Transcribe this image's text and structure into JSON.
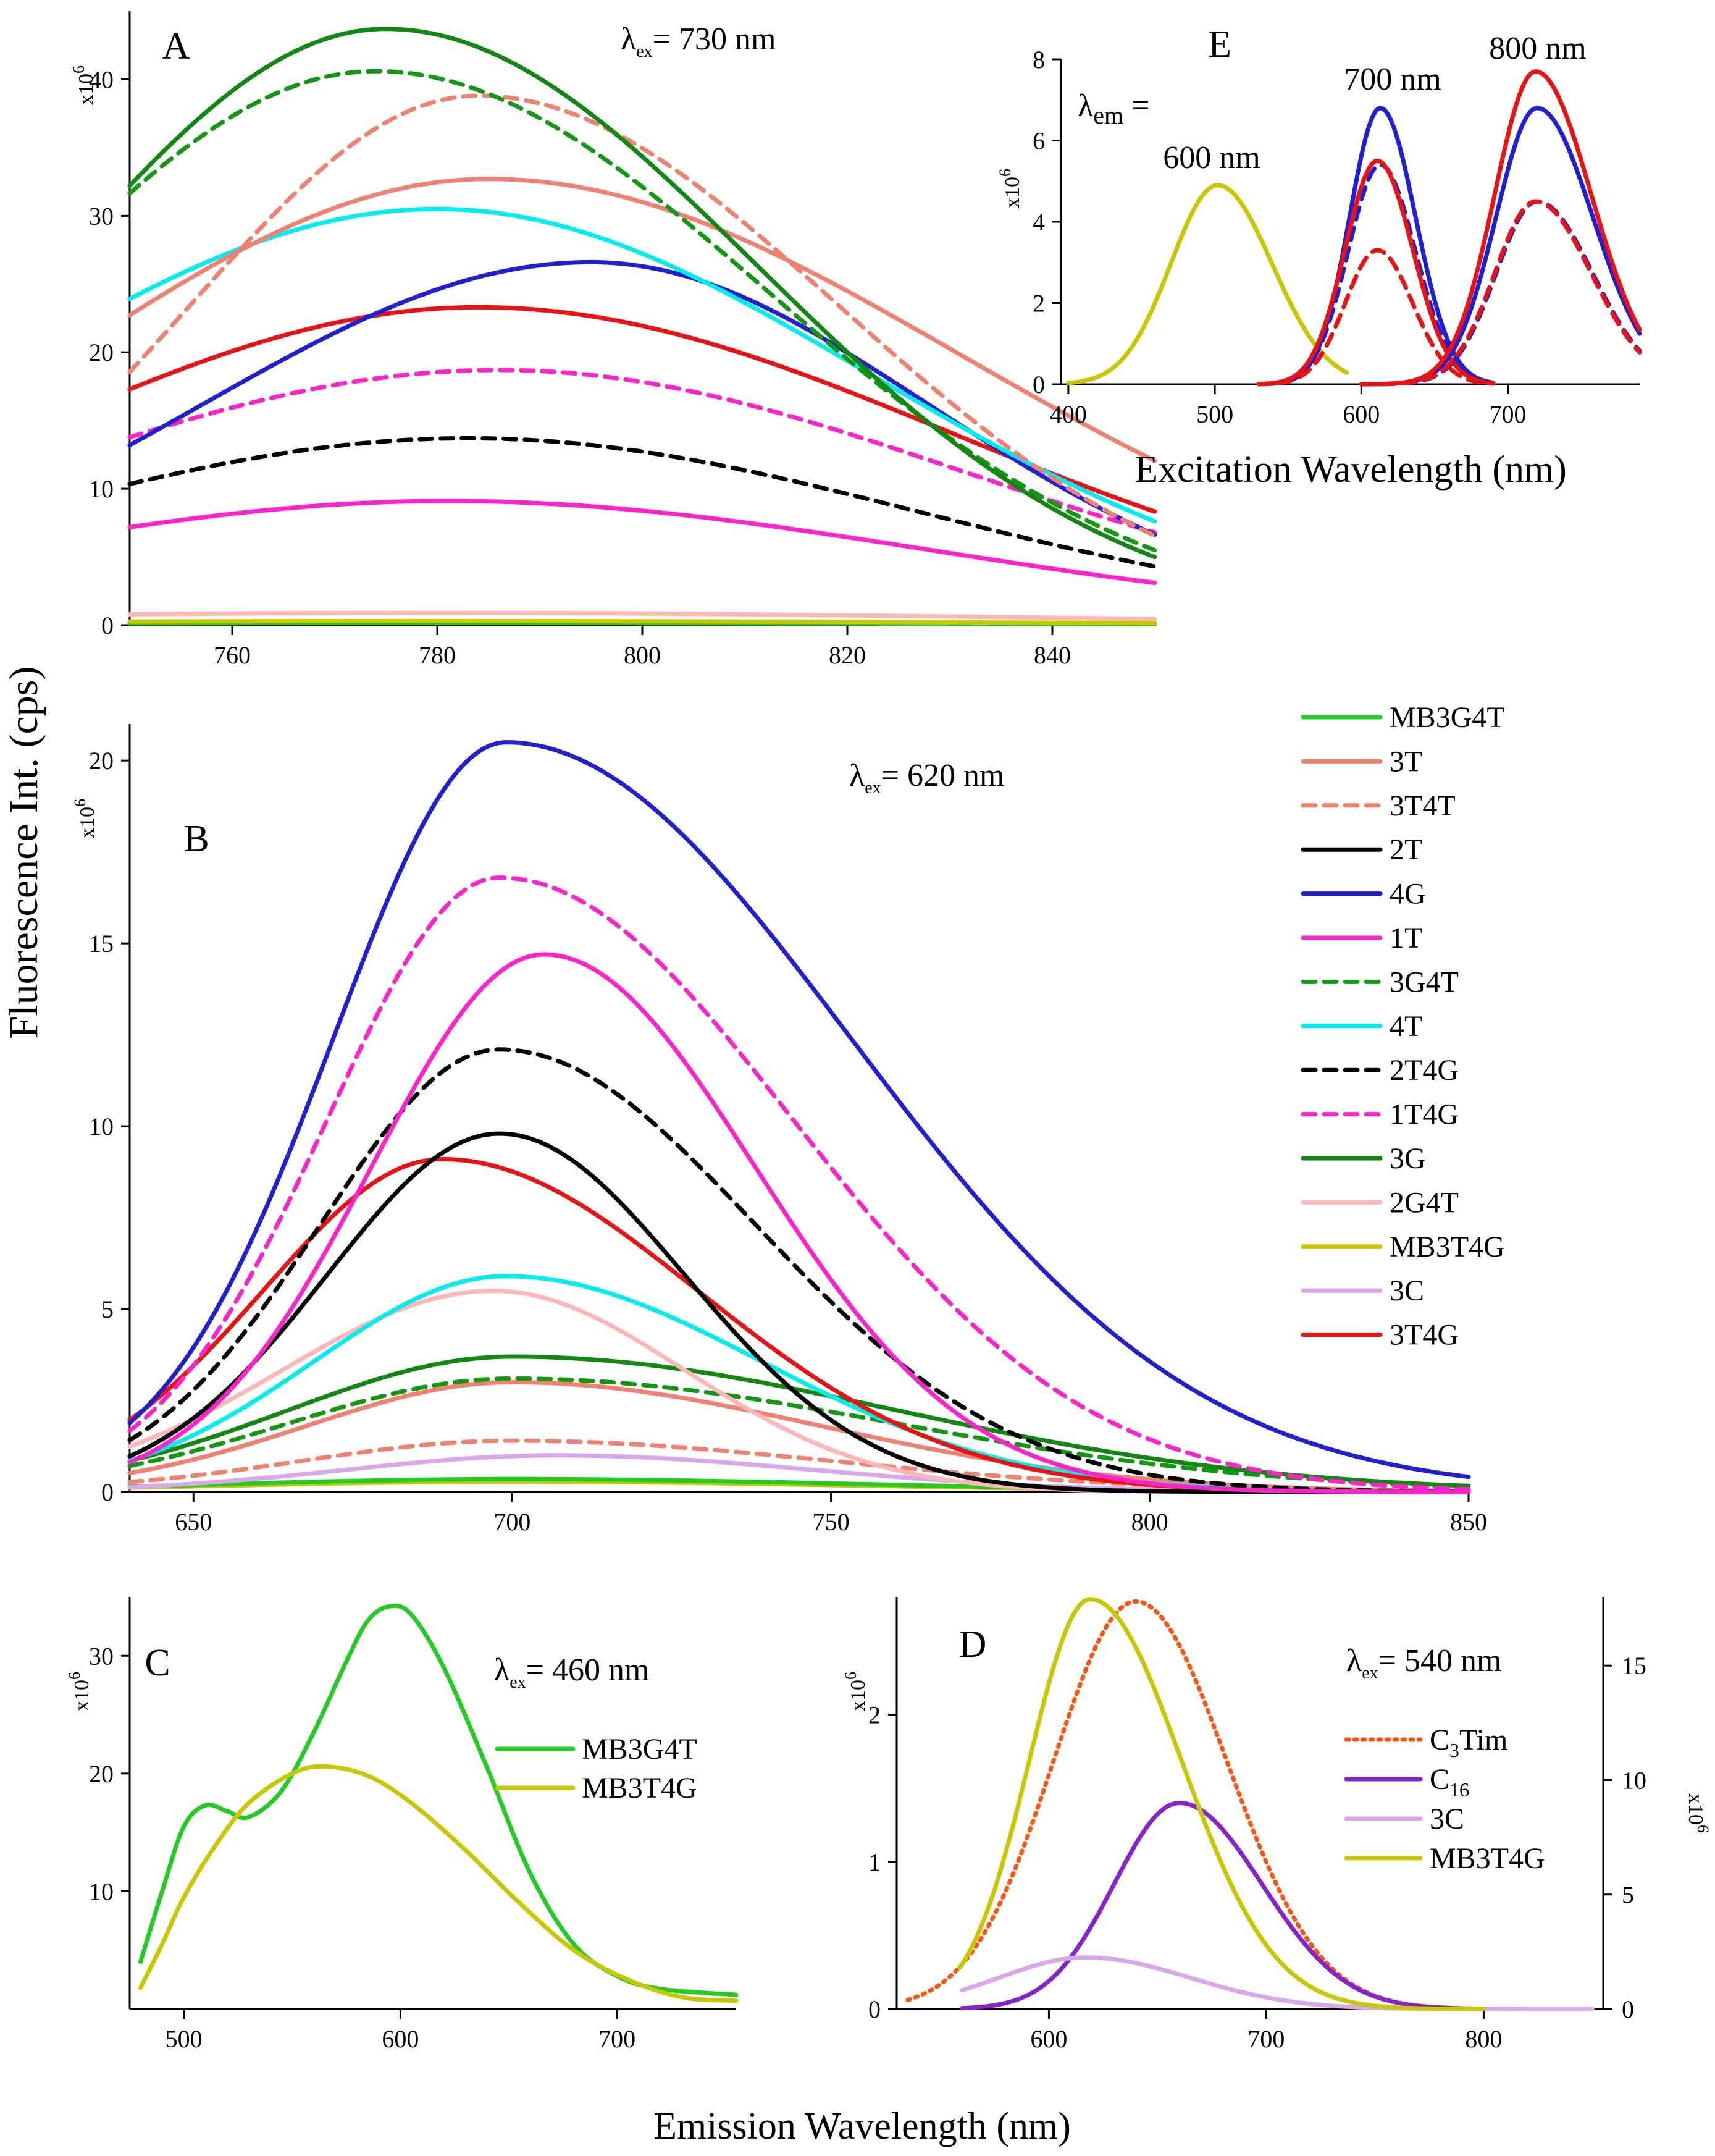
{
  "figure": {
    "shared_ylabel": "Fluorescence Int. (cps)",
    "shared_xlabel": "Emission Wavelength (nm)"
  },
  "colors": {
    "MB3G4T": "#22cc22",
    "3T": "#f08070",
    "3T4T": "#f08070",
    "2T": "#000000",
    "4G": "#1f1fd6",
    "1T": "#ff22cc",
    "3G4T": "#119911",
    "4T": "#00eeee",
    "2T4G": "#000000",
    "1T4G": "#ff22cc",
    "3G": "#118811",
    "2G4T": "#ffb6b6",
    "MB3T4G": "#c8c800",
    "3C": "#d8a8ea",
    "3T4G": "#ee1111",
    "C3Tim": "#ff5511",
    "C16": "#8822cc"
  },
  "chart_data": [
    {
      "panel": "A",
      "type": "line",
      "label": "A",
      "annotation": "λex= 730 nm",
      "multiplier": "x10^6",
      "xlim": [
        750,
        850
      ],
      "ylim": [
        0,
        45
      ],
      "xticks": [
        760,
        780,
        800,
        820,
        840
      ],
      "yticks": [
        0,
        10,
        20,
        30,
        40
      ],
      "series": [
        {
          "name": "3G",
          "peak_x": 775,
          "peak": 43.7,
          "sl": 32,
          "sr": 36,
          "style": "solid"
        },
        {
          "name": "3G4T",
          "peak_x": 774,
          "peak": 40.6,
          "sl": 34,
          "sr": 38,
          "style": "dashed"
        },
        {
          "name": "3T4T",
          "peak_x": 784,
          "peak": 38.8,
          "sl": 28,
          "sr": 35,
          "style": "dashed"
        },
        {
          "name": "3T",
          "peak_x": 785,
          "peak": 32.7,
          "sl": 41,
          "sr": 46,
          "style": "solid"
        },
        {
          "name": "4T",
          "peak_x": 780,
          "peak": 30.5,
          "sl": 43,
          "sr": 42,
          "style": "solid"
        },
        {
          "name": "4G",
          "peak_x": 795,
          "peak": 26.6,
          "sl": 38,
          "sr": 33,
          "style": "solid"
        },
        {
          "name": "3T4G",
          "peak_x": 784,
          "peak": 23.3,
          "sl": 44,
          "sr": 46,
          "style": "solid"
        },
        {
          "name": "1T4G",
          "peak_x": 786,
          "peak": 18.7,
          "sl": 46,
          "sr": 45,
          "style": "dashed"
        },
        {
          "name": "2T4G",
          "peak_x": 783,
          "peak": 13.7,
          "sl": 44,
          "sr": 44,
          "style": "dashed"
        },
        {
          "name": "1T",
          "peak_x": 781,
          "peak": 9.1,
          "sl": 45,
          "sr": 47,
          "style": "solid"
        },
        {
          "name": "2G4T",
          "peak_x": 780,
          "peak": 0.9,
          "sl": 60,
          "sr": 60,
          "style": "solid"
        },
        {
          "name": "MB3T4G",
          "peak_x": 780,
          "peak": 0.3,
          "sl": 60,
          "sr": 60,
          "style": "solid"
        },
        {
          "name": "MB3G4T",
          "peak_x": 780,
          "peak": 0.15,
          "sl": 60,
          "sr": 60,
          "style": "solid"
        }
      ]
    },
    {
      "panel": "B",
      "type": "line",
      "label": "B",
      "annotation": "λex= 620 nm",
      "multiplier": "x10^6",
      "xlim": [
        640,
        850
      ],
      "ylim": [
        0,
        21
      ],
      "xticks": [
        650,
        700,
        750,
        800,
        850
      ],
      "yticks": [
        0,
        5,
        10,
        15,
        20
      ],
      "series": [
        {
          "name": "4G",
          "peak_x": 699,
          "peak": 20.5,
          "sl": 27,
          "sr": 54,
          "style": "solid"
        },
        {
          "name": "1T4G",
          "peak_x": 698,
          "peak": 16.8,
          "sl": 27,
          "sr": 46,
          "style": "dashed"
        },
        {
          "name": "1T",
          "peak_x": 705,
          "peak": 14.7,
          "sl": 27,
          "sr": 33,
          "style": "solid"
        },
        {
          "name": "2T4G",
          "peak_x": 698,
          "peak": 12.1,
          "sl": 28,
          "sr": 40,
          "style": "dashed"
        },
        {
          "name": "2T",
          "peak_x": 698,
          "peak": 9.8,
          "sl": 27,
          "sr": 29,
          "style": "solid"
        },
        {
          "name": "3T4G",
          "peak_x": 689,
          "peak": 9.1,
          "sl": 28,
          "sr": 40,
          "style": "solid"
        },
        {
          "name": "4T",
          "peak_x": 699,
          "peak": 5.9,
          "sl": 30,
          "sr": 40,
          "style": "solid"
        },
        {
          "name": "2G4T",
          "peak_x": 697,
          "peak": 5.5,
          "sl": 33,
          "sr": 30,
          "style": "solid"
        },
        {
          "name": "3G",
          "peak_x": 700,
          "peak": 3.7,
          "sl": 35,
          "sr": 60,
          "style": "solid"
        },
        {
          "name": "3G4T",
          "peak_x": 700,
          "peak": 3.1,
          "sl": 35,
          "sr": 60,
          "style": "dashed"
        },
        {
          "name": "3T",
          "peak_x": 700,
          "peak": 3.0,
          "sl": 32,
          "sr": 48,
          "style": "solid"
        },
        {
          "name": "3T4T",
          "peak_x": 700,
          "peak": 1.4,
          "sl": 33,
          "sr": 50,
          "style": "dashed"
        },
        {
          "name": "3C",
          "peak_x": 707,
          "peak": 1.0,
          "sl": 33,
          "sr": 40,
          "style": "solid"
        },
        {
          "name": "MB3G4T",
          "peak_x": 700,
          "peak": 0.35,
          "sl": 45,
          "sr": 55,
          "style": "solid"
        },
        {
          "name": "MB3T4G",
          "peak_x": 700,
          "peak": 0.28,
          "sl": 45,
          "sr": 55,
          "style": "solid"
        }
      ]
    },
    {
      "panel": "C",
      "type": "line",
      "label": "C",
      "annotation": "λex= 460 nm",
      "multiplier": "x10^6",
      "xlim": [
        475,
        755
      ],
      "ylim": [
        0,
        35
      ],
      "xticks": [
        500,
        600,
        700
      ],
      "yticks": [
        10,
        20,
        30
      ],
      "series": [
        {
          "name": "MB3G4T",
          "points": [
            [
              480,
              4
            ],
            [
              490,
              10
            ],
            [
              500,
              15.5
            ],
            [
              510,
              17.3
            ],
            [
              520,
              16.8
            ],
            [
              530,
              16.3
            ],
            [
              545,
              18.5
            ],
            [
              560,
              23.5
            ],
            [
              575,
              29.5
            ],
            [
              585,
              33
            ],
            [
              595,
              34.2
            ],
            [
              605,
              33.5
            ],
            [
              620,
              29
            ],
            [
              640,
              20.5
            ],
            [
              660,
              11.5
            ],
            [
              680,
              5.5
            ],
            [
              700,
              2.8
            ],
            [
              720,
              1.7
            ],
            [
              755,
              1.2
            ]
          ],
          "style": "solid"
        },
        {
          "name": "MB3T4G",
          "points": [
            [
              480,
              1.8
            ],
            [
              490,
              5.5
            ],
            [
              500,
              9.5
            ],
            [
              515,
              14
            ],
            [
              530,
              17.5
            ],
            [
              550,
              20
            ],
            [
              565,
              20.6
            ],
            [
              585,
              19.8
            ],
            [
              605,
              17.5
            ],
            [
              630,
              13.5
            ],
            [
              655,
              9
            ],
            [
              680,
              5
            ],
            [
              705,
              2.5
            ],
            [
              730,
              1
            ],
            [
              755,
              0.7
            ]
          ],
          "style": "solid"
        }
      ],
      "legend": [
        "MB3G4T",
        "MB3T4G"
      ]
    },
    {
      "panel": "D",
      "type": "line",
      "label": "D",
      "annotation": "λex= 540 nm",
      "multiplier_left": "x10^6",
      "multiplier_right": "x10^6",
      "xlim": [
        530,
        855
      ],
      "ylim_left": [
        0,
        2.8
      ],
      "ylim_right": [
        0,
        18
      ],
      "xticks": [
        600,
        700,
        800
      ],
      "yticks_left": [
        0,
        1,
        2
      ],
      "yticks_right": [
        0,
        5,
        10,
        15
      ],
      "series": [
        {
          "name": "C3Tim",
          "axis": "right",
          "peak_x": 640,
          "peak": 17.8,
          "sl": 38,
          "sr": 42,
          "x_from": 535,
          "x_to": 760,
          "style": "dotted"
        },
        {
          "name": "C16",
          "axis": "left",
          "peak_x": 660,
          "peak": 1.4,
          "sl": 30,
          "sr": 38,
          "x_from": 560,
          "x_to": 850,
          "style": "solid"
        },
        {
          "name": "3C",
          "axis": "left",
          "peak_x": 617,
          "peak": 0.35,
          "sl": 40,
          "sr": 48,
          "x_from": 560,
          "x_to": 850,
          "style": "solid"
        },
        {
          "name": "MB3T4G",
          "axis": "right",
          "peak_x": 619,
          "peak": 17.9,
          "sl": 28,
          "sr": 42,
          "x_from": 559,
          "x_to": 800,
          "style": "solid"
        }
      ],
      "legend": [
        "C3Tim",
        "C16",
        "3C",
        "MB3T4G"
      ],
      "legend_text": {
        "C3Tim": [
          "C",
          "3",
          "Tim"
        ],
        "C16": [
          "C",
          "16",
          ""
        ]
      }
    },
    {
      "panel": "E",
      "type": "line",
      "label": "E",
      "xlabel": "Excitation Wavelength (nm)",
      "multiplier": "x10^6",
      "xlim": [
        395,
        790
      ],
      "ylim": [
        0,
        8
      ],
      "xticks": [
        400,
        500,
        600,
        700
      ],
      "yticks": [
        0,
        2,
        4,
        6,
        8
      ],
      "em_label": "λem =",
      "annotations": [
        "600 nm",
        "700 nm",
        "800 nm"
      ],
      "series": [
        {
          "name": "MB3T4G (600 nm)",
          "color_key": "MB3T4G",
          "peak_x": 502,
          "peak": 4.9,
          "sl": 32,
          "sr": 37,
          "x_from": 400,
          "x_to": 590,
          "style": "solid"
        },
        {
          "name": "4G (700 nm)",
          "color_key": "4G",
          "peak_x": 613,
          "peak": 6.8,
          "sl": 21,
          "sr": 24,
          "x_from": 530,
          "x_to": 690,
          "style": "solid"
        },
        {
          "name": "4G dashed (700 nm)",
          "color_key": "4G",
          "peak_x": 613,
          "peak": 5.4,
          "sl": 22,
          "sr": 24,
          "x_from": 530,
          "x_to": 690,
          "style": "dashed"
        },
        {
          "name": "3T4G (700 nm)",
          "color_key": "3T4G",
          "peak_x": 611,
          "peak": 5.5,
          "sl": 22,
          "sr": 24,
          "x_from": 530,
          "x_to": 690,
          "style": "solid"
        },
        {
          "name": "3T4G dashed (700 nm)",
          "color_key": "3T4G",
          "peak_x": 611,
          "peak": 3.3,
          "sl": 22,
          "sr": 24,
          "x_from": 530,
          "x_to": 690,
          "style": "dashed"
        },
        {
          "name": "4G (800 nm)",
          "color_key": "4G",
          "peak_x": 720,
          "peak": 6.8,
          "sl": 28,
          "sr": 38,
          "x_from": 600,
          "x_to": 790,
          "style": "solid"
        },
        {
          "name": "4G dashed (800 nm)",
          "color_key": "4G",
          "peak_x": 720,
          "peak": 4.5,
          "sl": 28,
          "sr": 38,
          "x_from": 600,
          "x_to": 790,
          "style": "dashed"
        },
        {
          "name": "3T4G (800 nm)",
          "color_key": "3T4G",
          "peak_x": 719,
          "peak": 7.7,
          "sl": 28,
          "sr": 38,
          "x_from": 600,
          "x_to": 790,
          "style": "solid"
        },
        {
          "name": "3T4G dashed (800 nm)",
          "color_key": "3T4G",
          "peak_x": 719,
          "peak": 4.5,
          "sl": 28,
          "sr": 38,
          "x_from": 600,
          "x_to": 790,
          "style": "dashed"
        }
      ]
    }
  ],
  "legend_main": [
    {
      "name": "MB3G4T",
      "style": "solid"
    },
    {
      "name": "3T",
      "style": "solid"
    },
    {
      "name": "3T4T",
      "style": "dashed"
    },
    {
      "name": "2T",
      "style": "solid"
    },
    {
      "name": "4G",
      "style": "solid"
    },
    {
      "name": "1T",
      "style": "solid"
    },
    {
      "name": "3G4T",
      "style": "dashed"
    },
    {
      "name": "4T",
      "style": "solid"
    },
    {
      "name": "2T4G",
      "style": "dashed"
    },
    {
      "name": "1T4G",
      "style": "dashed"
    },
    {
      "name": "3G",
      "style": "solid"
    },
    {
      "name": "2G4T",
      "style": "solid"
    },
    {
      "name": "MB3T4G",
      "style": "solid"
    },
    {
      "name": "3C",
      "style": "solid"
    },
    {
      "name": "3T4G",
      "style": "solid"
    }
  ]
}
